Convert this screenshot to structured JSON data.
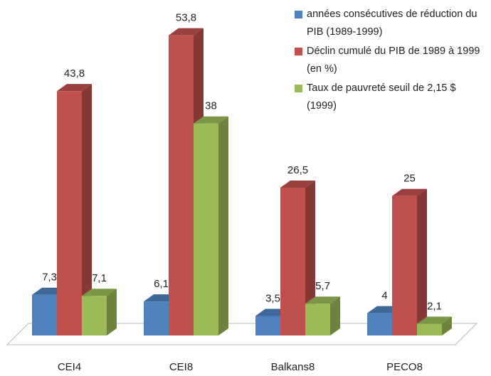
{
  "chart_data": {
    "type": "bar3d",
    "categories": [
      "CEI4",
      "CEI8",
      "Balkans8",
      "PECO8"
    ],
    "series": [
      {
        "name": "années consécutives de réduction du PIB (1989-1999)",
        "color": "#4f81bd",
        "values": [
          7.3,
          6.1,
          3.5,
          4
        ],
        "value_labels": [
          "7,3",
          "6,1",
          "3,5",
          "4"
        ]
      },
      {
        "name": "Déclin cumulé du PIB de 1989 à 1999 (en %)",
        "color": "#c0504d",
        "values": [
          43.8,
          53.8,
          26.5,
          25
        ],
        "value_labels": [
          "43,8",
          "53,8",
          "26,5",
          "25"
        ]
      },
      {
        "name": "Taux de pauvreté seuil de 2,15 $ (1999)",
        "color": "#9bbb59",
        "values": [
          7.1,
          38,
          5.7,
          2.1
        ],
        "value_labels": [
          "7,1",
          "38",
          "5,7",
          "2,1"
        ]
      }
    ]
  }
}
